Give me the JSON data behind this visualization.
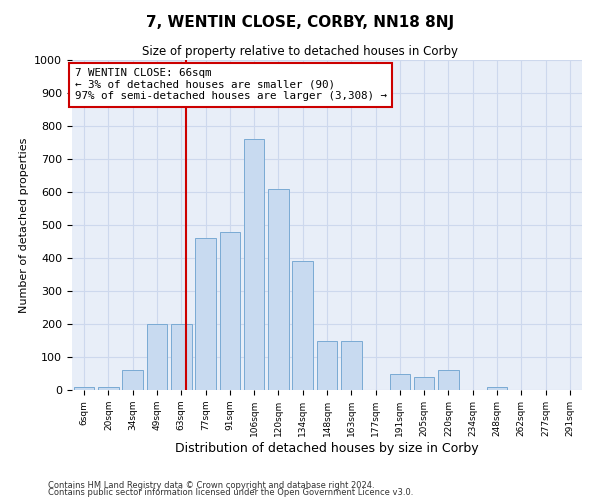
{
  "title": "7, WENTIN CLOSE, CORBY, NN18 8NJ",
  "subtitle": "Size of property relative to detached houses in Corby",
  "xlabel": "Distribution of detached houses by size in Corby",
  "ylabel": "Number of detached properties",
  "bar_color": "#c8daf0",
  "bar_edge_color": "#7aaad4",
  "grid_color": "#cdd8ed",
  "background_color": "#e8eef8",
  "vline_x": 4,
  "vline_color": "#cc0000",
  "annotation_text": "7 WENTIN CLOSE: 66sqm\n← 3% of detached houses are smaller (90)\n97% of semi-detached houses are larger (3,308) →",
  "annotation_box_color": "#ffffff",
  "annotation_border_color": "#cc0000",
  "tick_labels": [
    "6sqm",
    "20sqm",
    "34sqm",
    "49sqm",
    "63sqm",
    "77sqm",
    "91sqm",
    "106sqm",
    "120sqm",
    "134sqm",
    "148sqm",
    "163sqm",
    "177sqm",
    "191sqm",
    "205sqm",
    "220sqm",
    "234sqm",
    "248sqm",
    "262sqm",
    "277sqm",
    "291sqm"
  ],
  "values": [
    10,
    10,
    60,
    200,
    200,
    460,
    480,
    760,
    610,
    390,
    150,
    150,
    0,
    50,
    40,
    60,
    0,
    10,
    0,
    0,
    0
  ],
  "ylim": [
    0,
    1000
  ],
  "yticks": [
    0,
    100,
    200,
    300,
    400,
    500,
    600,
    700,
    800,
    900,
    1000
  ],
  "footer_line1": "Contains HM Land Registry data © Crown copyright and database right 2024.",
  "footer_line2": "Contains public sector information licensed under the Open Government Licence v3.0."
}
